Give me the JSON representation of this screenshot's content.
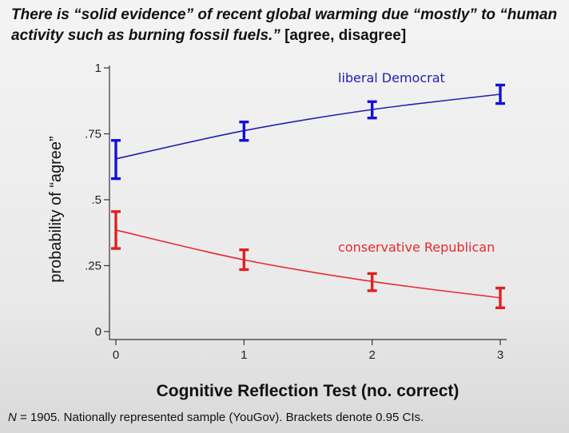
{
  "title": {
    "question": "There is “solid evidence” of recent global warming due “mostly” to “human activity such as burning fossil fuels.”",
    "options": "[agree, disagree]"
  },
  "footnote": {
    "n_label": "N",
    "text": " = 1905. Nationally represented sample (YouGov).  Brackets denote 0.95 CIs."
  },
  "chart_data": {
    "type": "line",
    "xlabel": "Cognitive Reflection Test (no. correct)",
    "ylabel": "probability of “agree”",
    "x": [
      0,
      1,
      2,
      3
    ],
    "xlim": [
      -0.05,
      3.05
    ],
    "ylim": [
      0,
      1
    ],
    "xticks": [
      "0",
      "1",
      "2",
      "3"
    ],
    "yticks": [
      {
        "value": 0,
        "label": "0"
      },
      {
        "value": 0.25,
        "label": ".25"
      },
      {
        "value": 0.5,
        "label": ".5"
      },
      {
        "value": 0.75,
        "label": ".75"
      },
      {
        "value": 1,
        "label": "1"
      }
    ],
    "series": [
      {
        "name": "liberal Democrat",
        "color": "#1f1fb0",
        "bracket_color": "#1111dd",
        "values": [
          0.655,
          0.762,
          0.842,
          0.9
        ],
        "ci_low": [
          0.58,
          0.725,
          0.81,
          0.865
        ],
        "ci_high": [
          0.725,
          0.795,
          0.872,
          0.935
        ]
      },
      {
        "name": "conservative Republican",
        "color": "#e8282f",
        "bracket_color": "#e02020",
        "values": [
          0.385,
          0.272,
          0.19,
          0.128
        ],
        "ci_low": [
          0.315,
          0.235,
          0.155,
          0.09
        ],
        "ci_high": [
          0.455,
          0.31,
          0.22,
          0.165
        ]
      }
    ],
    "grid": false,
    "legend": "inline labels near each line"
  }
}
